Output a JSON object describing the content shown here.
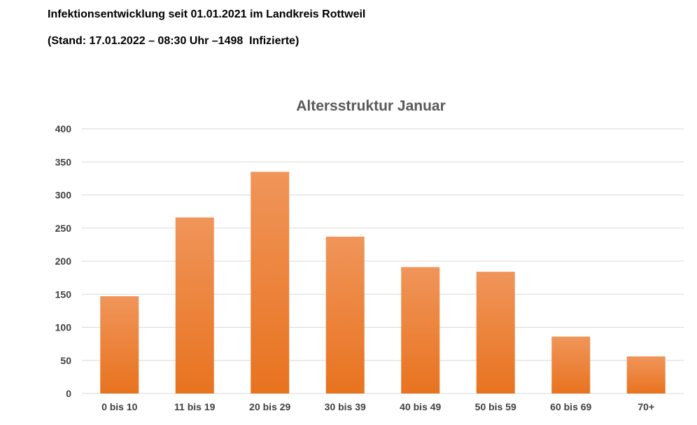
{
  "header": {
    "line1": "Infektionsentwicklung seit 01.01.2021 im Landkreis Rottweil",
    "line2": "(Stand: 17.01.2022 – 08:30 Uhr –1498  Infizierte)"
  },
  "chart_data": {
    "type": "bar",
    "title": "Altersstruktur Januar",
    "xlabel": "",
    "ylabel": "",
    "categories": [
      "0 bis 10",
      "11 bis 19",
      "20 bis 29",
      "30 bis 39",
      "40 bis 49",
      "50 bis 59",
      "60 bis 69",
      "70+"
    ],
    "values": [
      147,
      266,
      335,
      237,
      191,
      184,
      86,
      56
    ],
    "ylim": [
      0,
      400
    ],
    "yticks": [
      0,
      50,
      100,
      150,
      200,
      250,
      300,
      350,
      400
    ],
    "grid": true,
    "legend": "none",
    "colors": {
      "bar_top": "#f0955a",
      "bar_bottom": "#e8731f",
      "grid": "#d9d9d9"
    }
  }
}
